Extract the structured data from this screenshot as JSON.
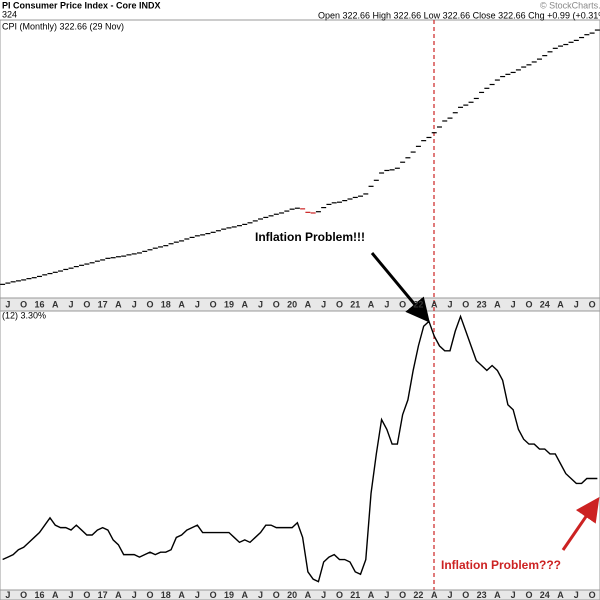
{
  "chart_data": [
    {
      "type": "ohlc",
      "title": "PI Consumer Price Index - Core INDX",
      "subtitle": "324",
      "header_right": "Open 322.66 High 322.66 Low 322.66 Close 322.66 Chg +0.99 (+0.31%",
      "watermark": "© StockCharts.com",
      "legend": "CPI (Monthly) 322.66 (29 Nov)",
      "annotation": "Inflation Problem!!!",
      "up_color": "#000000",
      "down_color": "#cc2222",
      "ylim": [
        238.2,
        325.2
      ],
      "categories": [
        null,
        "J",
        null,
        null,
        "O",
        null,
        null,
        "16",
        null,
        null,
        "A",
        null,
        null,
        "J",
        null,
        null,
        "O",
        null,
        null,
        "17",
        null,
        null,
        "A",
        null,
        null,
        "J",
        null,
        null,
        "O",
        null,
        null,
        "18",
        null,
        null,
        "A",
        null,
        null,
        "J",
        null,
        null,
        "O",
        null,
        null,
        "19",
        null,
        null,
        "A",
        null,
        null,
        "J",
        null,
        null,
        "O",
        null,
        null,
        "20",
        null,
        null,
        "A",
        null,
        null,
        "J",
        null,
        null,
        "O",
        null,
        null,
        "21",
        null,
        null,
        "A",
        null,
        null,
        "J",
        null,
        null,
        "O",
        null,
        null,
        "22",
        null,
        null,
        "A",
        null,
        null,
        "J",
        null,
        null,
        "O",
        null,
        null,
        "23",
        null,
        null,
        "A",
        null,
        null,
        "J",
        null,
        null,
        "O",
        null,
        null,
        "24",
        null,
        null,
        "A",
        null,
        null,
        "J",
        null,
        null,
        "O",
        null
      ],
      "values": [
        242.5,
        242.9,
        243.3,
        243.6,
        243.9,
        244.3,
        244.6,
        245.0,
        245.5,
        245.9,
        246.3,
        246.7,
        247.2,
        247.6,
        248.1,
        248.5,
        248.9,
        249.3,
        249.8,
        250.2,
        250.7,
        250.9,
        251.2,
        251.4,
        251.8,
        252.1,
        252.4,
        252.9,
        253.4,
        253.9,
        254.3,
        254.7,
        255.3,
        255.8,
        256.2,
        256.8,
        257.3,
        257.8,
        258.1,
        258.5,
        258.9,
        259.4,
        259.9,
        260.3,
        260.6,
        261.0,
        261.4,
        261.9,
        262.5,
        263.1,
        263.6,
        264.1,
        264.6,
        265.0,
        265.6,
        266.2,
        266.5,
        266.3,
        265.2,
        265.0,
        265.4,
        266.7,
        267.7,
        268.2,
        268.4,
        268.9,
        269.4,
        269.9,
        270.3,
        271.0,
        273.4,
        275.3,
        277.6,
        278.4,
        278.6,
        279.1,
        281.0,
        282.4,
        284.2,
        286.0,
        287.8,
        288.8,
        290.3,
        292.1,
        294.0,
        294.9,
        296.6,
        298.3,
        299.0,
        299.9,
        301.1,
        303.0,
        304.3,
        305.5,
        306.9,
        308.0,
        308.7,
        309.3,
        310.1,
        311.0,
        311.7,
        312.6,
        313.5,
        314.6,
        315.8,
        316.9,
        317.6,
        318.1,
        318.8,
        319.4,
        320.3,
        321.2,
        321.7,
        322.66
      ]
    },
    {
      "type": "line",
      "legend": "(12) 3.30%",
      "annotation": "Inflation Problem???",
      "color": "#000000",
      "annotation_color": "#cc2222",
      "ylim": [
        1.03,
        6.71
      ],
      "categories": [
        null,
        "J",
        null,
        null,
        "O",
        null,
        null,
        "16",
        null,
        null,
        "A",
        null,
        null,
        "J",
        null,
        null,
        "O",
        null,
        null,
        "17",
        null,
        null,
        "A",
        null,
        null,
        "J",
        null,
        null,
        "O",
        null,
        null,
        "18",
        null,
        null,
        "A",
        null,
        null,
        "J",
        null,
        null,
        "O",
        null,
        null,
        "19",
        null,
        null,
        "A",
        null,
        null,
        "J",
        null,
        null,
        "O",
        null,
        null,
        "20",
        null,
        null,
        "A",
        null,
        null,
        "J",
        null,
        null,
        "O",
        null,
        null,
        "21",
        null,
        null,
        "A",
        null,
        null,
        "J",
        null,
        null,
        "O",
        null,
        null,
        "22",
        null,
        null,
        "A",
        null,
        null,
        "J",
        null,
        null,
        "O",
        null,
        null,
        "23",
        null,
        null,
        "A",
        null,
        null,
        "J",
        null,
        null,
        "O",
        null,
        null,
        "24",
        null,
        null,
        "A",
        null,
        null,
        "J",
        null,
        null,
        "O",
        null
      ],
      "values": [
        1.65,
        1.7,
        1.75,
        1.85,
        1.9,
        2.0,
        2.1,
        2.2,
        2.35,
        2.5,
        2.35,
        2.3,
        2.3,
        2.25,
        2.35,
        2.25,
        2.15,
        2.15,
        2.25,
        2.3,
        2.25,
        2.05,
        1.95,
        1.75,
        1.75,
        1.75,
        1.7,
        1.75,
        1.8,
        1.75,
        1.8,
        1.8,
        1.85,
        2.1,
        2.15,
        2.25,
        2.3,
        2.35,
        2.2,
        2.2,
        2.2,
        2.2,
        2.2,
        2.2,
        2.1,
        2.0,
        2.05,
        2.0,
        2.1,
        2.2,
        2.35,
        2.35,
        2.3,
        2.3,
        2.3,
        2.3,
        2.4,
        2.1,
        1.4,
        1.25,
        1.2,
        1.6,
        1.7,
        1.75,
        1.65,
        1.65,
        1.6,
        1.4,
        1.35,
        1.65,
        3.0,
        3.8,
        4.5,
        4.3,
        4.0,
        4.0,
        4.6,
        4.9,
        5.5,
        6.0,
        6.4,
        6.5,
        6.2,
        6.0,
        5.9,
        5.9,
        6.3,
        6.6,
        6.3,
        6.0,
        5.7,
        5.6,
        5.5,
        5.6,
        5.5,
        5.3,
        4.8,
        4.7,
        4.3,
        4.1,
        4.0,
        4.0,
        3.9,
        3.9,
        3.8,
        3.8,
        3.6,
        3.4,
        3.3,
        3.2,
        3.2,
        3.3,
        3.3,
        3.3
      ]
    }
  ]
}
